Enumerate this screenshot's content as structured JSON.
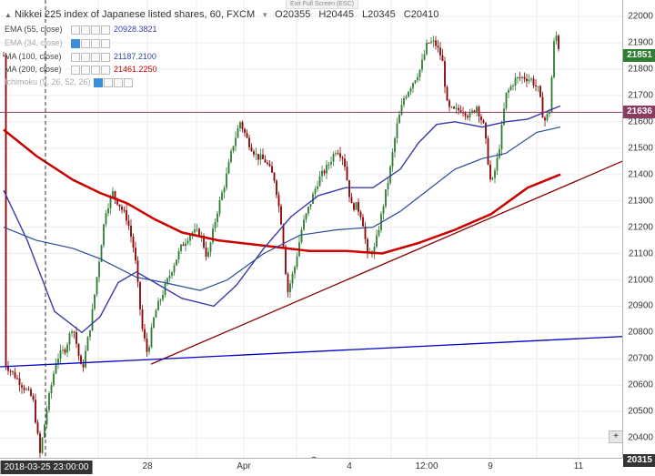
{
  "window": {
    "exit_fullscreen_label": "Exit Full Screen (ESC)"
  },
  "instrument": {
    "title": "Nikkei 225 index of Japanese listed shares, 60, FXCM",
    "o_label": "O",
    "o": "20355",
    "h_label": "H",
    "h": "20445",
    "l_label": "L",
    "l": "20345",
    "c_label": "C",
    "c": "20410"
  },
  "indicators": [
    {
      "name": "EMA (55, close)",
      "value": "20928.3821",
      "color": "#3a3aa8",
      "visible": true
    },
    {
      "name": "EMA (34, close)",
      "value": "",
      "color": "#3a3aa8",
      "visible": false
    },
    {
      "name": "MA (100, close)",
      "value": "21187.2100",
      "color": "#2a4a9a",
      "visible": true
    },
    {
      "name": "MA (200, close)",
      "value": "21461.2250",
      "color": "#cc0000",
      "visible": true
    },
    {
      "name": "Ichimoku (9, 26, 52, 26)",
      "value": "",
      "color": "#aaaaaa",
      "visible": false
    }
  ],
  "price_axis": {
    "ticks": [
      "22000",
      "21900",
      "21800",
      "21700",
      "21600",
      "21500",
      "21400",
      "21300",
      "21200",
      "21100",
      "21000",
      "20900",
      "20800",
      "20700",
      "20600",
      "20500",
      "20400"
    ],
    "last_price_label": "21851",
    "horizontal_line_label": "21636",
    "crosshair_price_label": "20315"
  },
  "time_axis": {
    "ticks": [
      "28",
      "Apr",
      "4",
      "12:00",
      "9",
      "11"
    ],
    "crosshair_time_label": "2018-03-25 23:00:00"
  },
  "chart_data": {
    "type": "candlestick",
    "ylim": [
      20315,
      22030
    ],
    "horizontal_lines": [
      {
        "price": 21636,
        "color": "#8b3a62"
      },
      {
        "price": 20315,
        "color": "#1a237e",
        "style": "crosshair"
      }
    ],
    "trendlines": [
      {
        "color": "#8b0000",
        "from": {
          "price": 20680
        },
        "to": {
          "price": 21450
        }
      },
      {
        "color": "#0000cc",
        "from": {
          "price": 20670
        },
        "to": {
          "price": 20785
        }
      }
    ],
    "colors": {
      "up": "#2e7d32",
      "down": "#8b0000",
      "ma200": "#cc0000",
      "ema55": "#3a3aa8",
      "ma100": "#2a4a9a",
      "last_price": "#2e7d32",
      "hline": "#8b3a62",
      "crosshair": "#1a237e"
    }
  }
}
